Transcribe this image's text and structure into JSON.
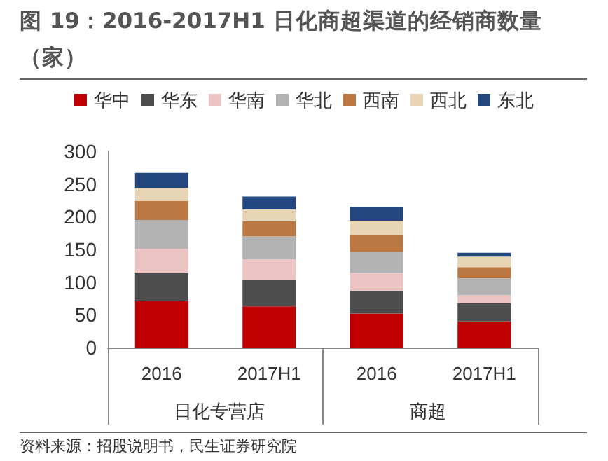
{
  "chart_data": {
    "type": "bar",
    "title": "图 19：2016-2017H1 日化商超渠道的经销商数量（家）",
    "categories": [
      "2016",
      "2017H1",
      "2016",
      "2017H1"
    ],
    "stacked": true,
    "legend": "top",
    "grid": false,
    "series": [
      {
        "name": "华中",
        "color": "#c00000",
        "values": [
          71,
          63,
          52,
          40
        ]
      },
      {
        "name": "华东",
        "color": "#4d4d4d",
        "values": [
          43,
          40,
          35,
          28
        ]
      },
      {
        "name": "华南",
        "color": "#ecc4c4",
        "values": [
          37,
          32,
          27,
          12
        ]
      },
      {
        "name": "华北",
        "color": "#b3b3b3",
        "values": [
          44,
          35,
          32,
          26
        ]
      },
      {
        "name": "西南",
        "color": "#bb7842",
        "values": [
          29,
          23,
          26,
          17
        ]
      },
      {
        "name": "西北",
        "color": "#e8d5b5",
        "values": [
          20,
          18,
          22,
          16
        ]
      },
      {
        "name": "东北",
        "color": "#23467e",
        "values": [
          23,
          20,
          21,
          6
        ]
      }
    ],
    "ylim": [
      0,
      300
    ],
    "yticks": [
      0,
      50,
      100,
      150,
      200,
      250,
      300
    ],
    "annotations": [
      "日化专营店",
      "商超",
      "资料来源：招股说明书，民生证券研究院"
    ]
  }
}
